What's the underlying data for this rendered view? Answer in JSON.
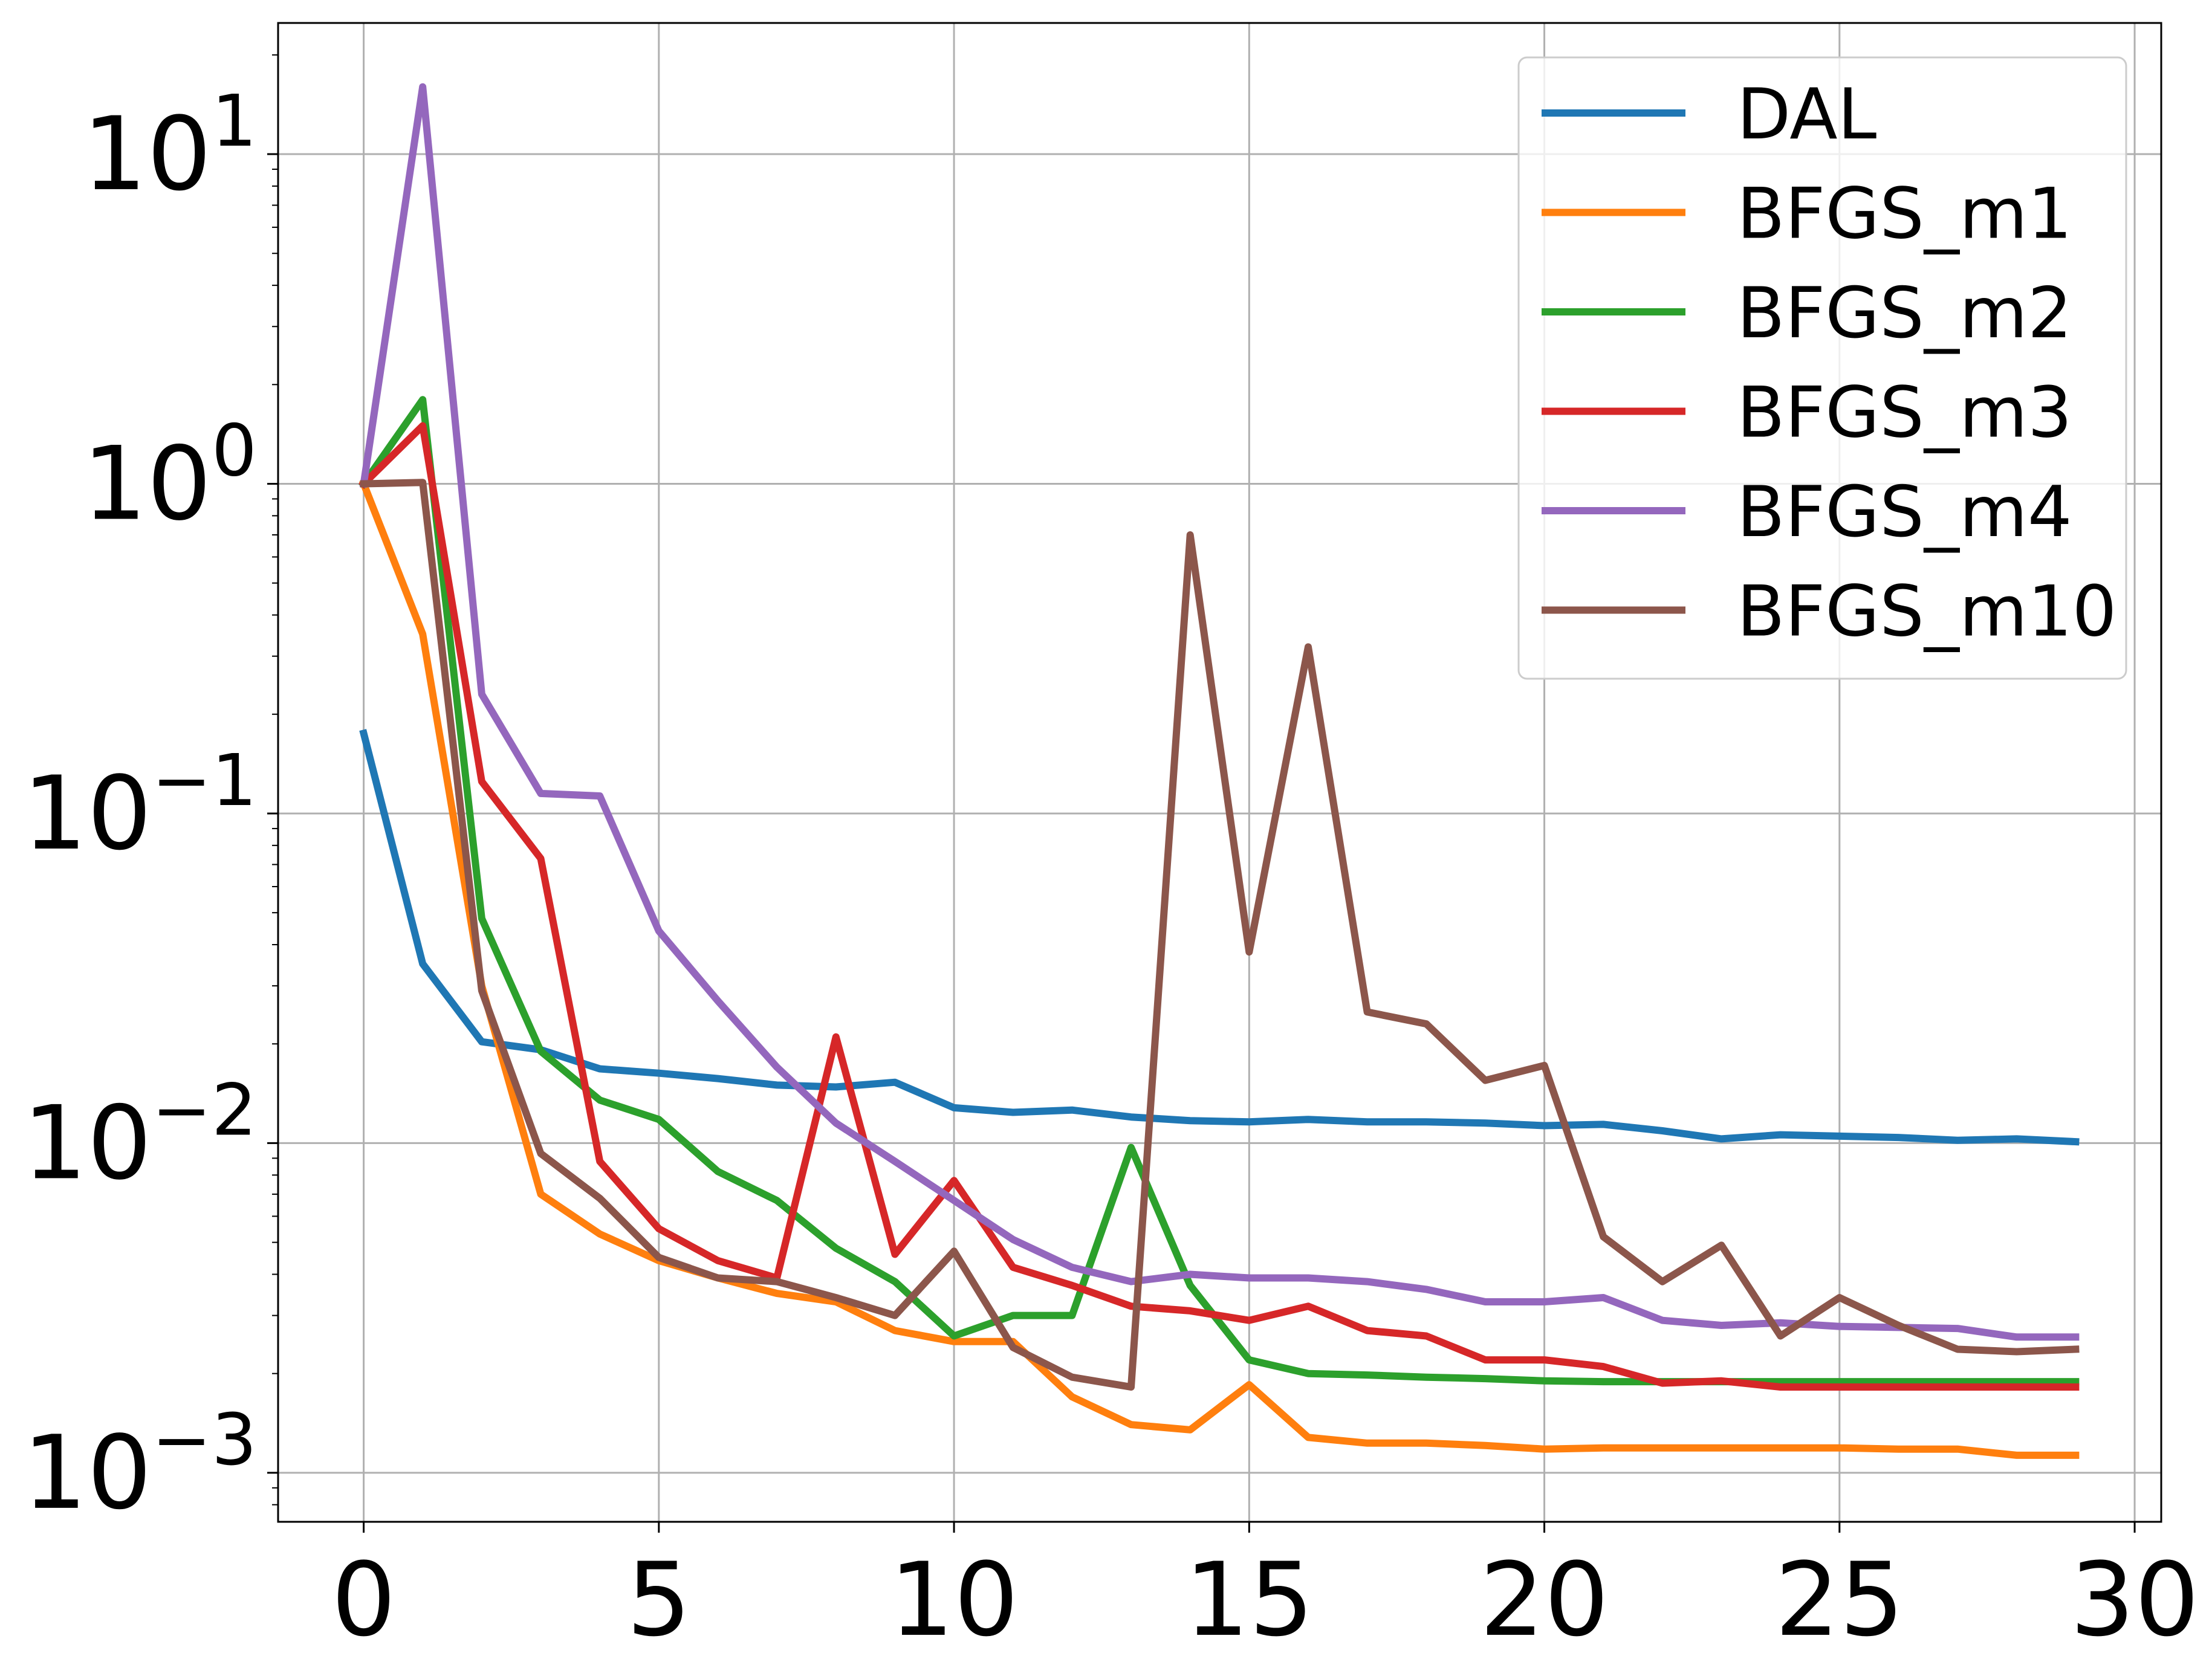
{
  "chart_data": {
    "type": "line",
    "title": "",
    "xlabel": "",
    "ylabel": "",
    "yscale": "log",
    "xlim": [
      -1.45,
      30.45
    ],
    "ylim": [
      0.00071,
      25
    ],
    "grid": true,
    "legend_position": "top-right",
    "x_ticks": [
      0,
      5,
      10,
      15,
      20,
      25,
      30
    ],
    "x_tick_labels": [
      "0",
      "5",
      "10",
      "15",
      "20",
      "25",
      "30"
    ],
    "y_ticks": [
      0.001,
      0.01,
      0.1,
      1,
      10
    ],
    "y_tick_labels": [
      {
        "base": "10",
        "exp": "−3"
      },
      {
        "base": "10",
        "exp": "−2"
      },
      {
        "base": "10",
        "exp": "−1"
      },
      {
        "base": "10",
        "exp": "0"
      },
      {
        "base": "10",
        "exp": "1"
      }
    ],
    "x": [
      0,
      1,
      2,
      3,
      4,
      5,
      6,
      7,
      8,
      9,
      10,
      11,
      12,
      13,
      14,
      15,
      16,
      17,
      18,
      19,
      20,
      21,
      22,
      23,
      24,
      25,
      26,
      27,
      28,
      29
    ],
    "series": [
      {
        "name": "DAL",
        "color": "#1f77b4",
        "values": [
          0.175,
          0.035,
          0.0203,
          0.0192,
          0.0168,
          0.0163,
          0.0157,
          0.015,
          0.0148,
          0.0153,
          0.0128,
          0.0124,
          0.0126,
          0.012,
          0.0117,
          0.0116,
          0.0118,
          0.0116,
          0.0116,
          0.0115,
          0.0113,
          0.0114,
          0.0109,
          0.0103,
          0.0106,
          0.0105,
          0.0104,
          0.0102,
          0.0103,
          0.0101
        ]
      },
      {
        "name": "BFGS_m1",
        "color": "#ff7f0e",
        "values": [
          1.0,
          0.35,
          0.03,
          0.007,
          0.0053,
          0.0044,
          0.0039,
          0.0035,
          0.0033,
          0.0027,
          0.0025,
          0.0025,
          0.0017,
          0.0014,
          0.00135,
          0.00185,
          0.00128,
          0.00123,
          0.00123,
          0.00121,
          0.00118,
          0.00119,
          0.00119,
          0.00119,
          0.00119,
          0.00119,
          0.00118,
          0.00118,
          0.00113,
          0.00113
        ]
      },
      {
        "name": "BFGS_m2",
        "color": "#2ca02c",
        "values": [
          1.0,
          1.8,
          0.048,
          0.019,
          0.0135,
          0.0118,
          0.0082,
          0.0067,
          0.0048,
          0.0038,
          0.0026,
          0.003,
          0.003,
          0.0097,
          0.0037,
          0.0022,
          0.002,
          0.00198,
          0.00195,
          0.00193,
          0.0019,
          0.00189,
          0.00189,
          0.00189,
          0.00189,
          0.00189,
          0.00189,
          0.00189,
          0.00189,
          0.00189
        ]
      },
      {
        "name": "BFGS_m3",
        "color": "#d62728",
        "values": [
          1.0,
          1.5,
          0.125,
          0.073,
          0.0088,
          0.0055,
          0.0044,
          0.0039,
          0.021,
          0.0046,
          0.0077,
          0.0042,
          0.0037,
          0.0032,
          0.0031,
          0.0029,
          0.0032,
          0.0027,
          0.0026,
          0.0022,
          0.0022,
          0.0021,
          0.00187,
          0.0019,
          0.00182,
          0.00182,
          0.00182,
          0.00182,
          0.00182,
          0.00182
        ]
      },
      {
        "name": "BFGS_m4",
        "color": "#9467bd",
        "values": [
          1.0,
          16.0,
          0.23,
          0.115,
          0.113,
          0.044,
          0.027,
          0.017,
          0.0115,
          0.0088,
          0.0067,
          0.0051,
          0.0042,
          0.0038,
          0.004,
          0.0039,
          0.0039,
          0.0038,
          0.0036,
          0.0033,
          0.0033,
          0.0034,
          0.0029,
          0.0028,
          0.00285,
          0.00278,
          0.00276,
          0.00274,
          0.00258,
          0.00258
        ]
      },
      {
        "name": "BFGS_m10",
        "color": "#8c564b",
        "values": [
          1.0,
          1.01,
          0.029,
          0.0093,
          0.0068,
          0.0045,
          0.0039,
          0.0038,
          0.0034,
          0.003,
          0.0047,
          0.0024,
          0.00195,
          0.00182,
          0.7,
          0.038,
          0.32,
          0.025,
          0.023,
          0.0155,
          0.0172,
          0.0052,
          0.0038,
          0.0049,
          0.0026,
          0.0034,
          0.0028,
          0.00237,
          0.00233,
          0.00237
        ]
      }
    ]
  }
}
